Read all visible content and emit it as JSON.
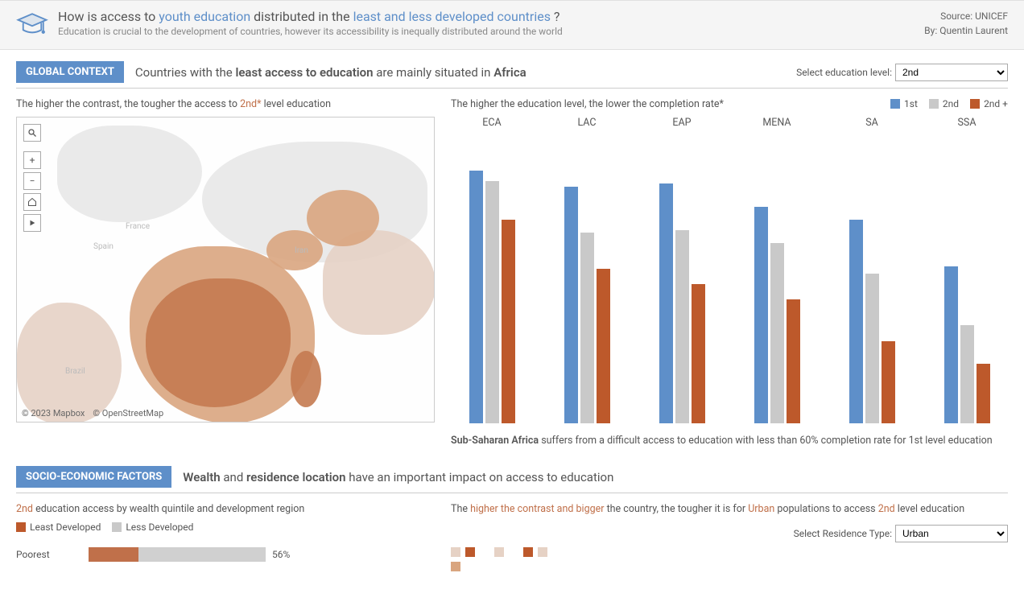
{
  "header": {
    "title_pre": "How is access to ",
    "title_hl1": "youth education",
    "title_mid": " distributed in the ",
    "title_hl2": "least and less developed countries",
    "title_post": " ?",
    "subtitle": "Education is crucial to the development of countries, however its accessibility is inequally distributed around the world",
    "source": "Source: UNICEF",
    "author": "By: Quentin Laurent"
  },
  "global": {
    "badge": "GLOBAL CONTEXT",
    "sentence_pre": "Countries with the ",
    "sentence_b1": "least access to education",
    "sentence_mid": " are mainly situated in ",
    "sentence_b2": "Africa",
    "selector_label": "Select education level:",
    "selector_value": "2nd",
    "map_subhead_pre": "The higher the contrast, the tougher the access to ",
    "map_subhead_hl": "2nd*",
    "map_subhead_post": " level education",
    "map_attr1": "© 2023 Mapbox",
    "map_attr2": "© OpenStreetMap",
    "map_colors": {
      "light": "#e6d2c5",
      "mid": "#d9a57f",
      "dark": "#c47a50",
      "neutral": "#e8e8e8"
    },
    "chart_subhead": "The higher the education level, the lower the completion rate*",
    "legend": [
      {
        "label": "1st",
        "color": "#5e8fc9"
      },
      {
        "label": "2nd",
        "color": "#c9c9c9"
      },
      {
        "label": "2nd +",
        "color": "#bd592b"
      }
    ],
    "ylim": 100,
    "groups": [
      {
        "label": "ECA",
        "vals": [
          98,
          94,
          79
        ]
      },
      {
        "label": "LAC",
        "vals": [
          92,
          74,
          60
        ]
      },
      {
        "label": "EAP",
        "vals": [
          93,
          75,
          54
        ]
      },
      {
        "label": "MENA",
        "vals": [
          84,
          70,
          48
        ]
      },
      {
        "label": "SA",
        "vals": [
          79,
          58,
          32
        ]
      },
      {
        "label": "SSA",
        "vals": [
          61,
          38,
          23
        ]
      }
    ],
    "annotation_b": "Sub-Saharan Africa",
    "annotation_rest": " suffers from a difficult access to education with less than 60% completion rate for 1st level education"
  },
  "socio": {
    "badge": "SOCIO-ECONOMIC FACTORS",
    "sentence_b1": "Wealth",
    "sentence_mid": " and ",
    "sentence_b2": "residence location",
    "sentence_post": " have an important impact on access to education",
    "left_subhead_hl": "2nd",
    "left_subhead_rest": " education access by wealth quintile and development region",
    "mini_legend": [
      {
        "label": "Least Developed",
        "color": "#bd592b"
      },
      {
        "label": "Less Developed",
        "color": "#c9c9c9"
      }
    ],
    "wealth_row": {
      "label": "Poorest",
      "pct": 56,
      "fill_pct": 28
    },
    "right_subhead_pre": "The ",
    "right_subhead_hl1": "higher the contrast and bigger",
    "right_subhead_mid": " the country, the tougher it is for ",
    "right_subhead_hl2": "Urban",
    "right_subhead_mid2": " populations to access ",
    "right_subhead_hl3": "2nd",
    "right_subhead_post": " level education",
    "res_label": "Select Residence Type:",
    "res_value": "Urban",
    "tiny_colors": [
      "#e6d2c5",
      "#bd592b",
      "#ffffff",
      "#e6d2c5",
      "#ffffff",
      "#bd592b",
      "#e6d2c5",
      "#d9a57f"
    ]
  }
}
